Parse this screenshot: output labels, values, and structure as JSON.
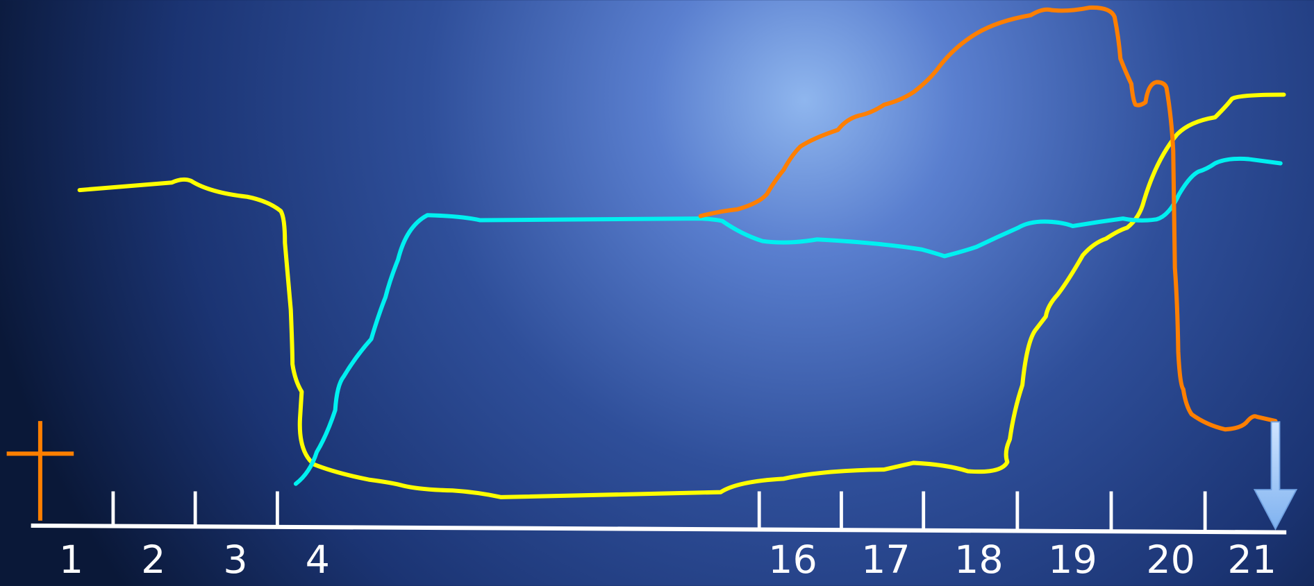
{
  "timeline": {
    "labels": [
      "1",
      "2",
      "3",
      "4",
      "16",
      "17",
      "18",
      "19",
      "20",
      "21"
    ]
  }
}
